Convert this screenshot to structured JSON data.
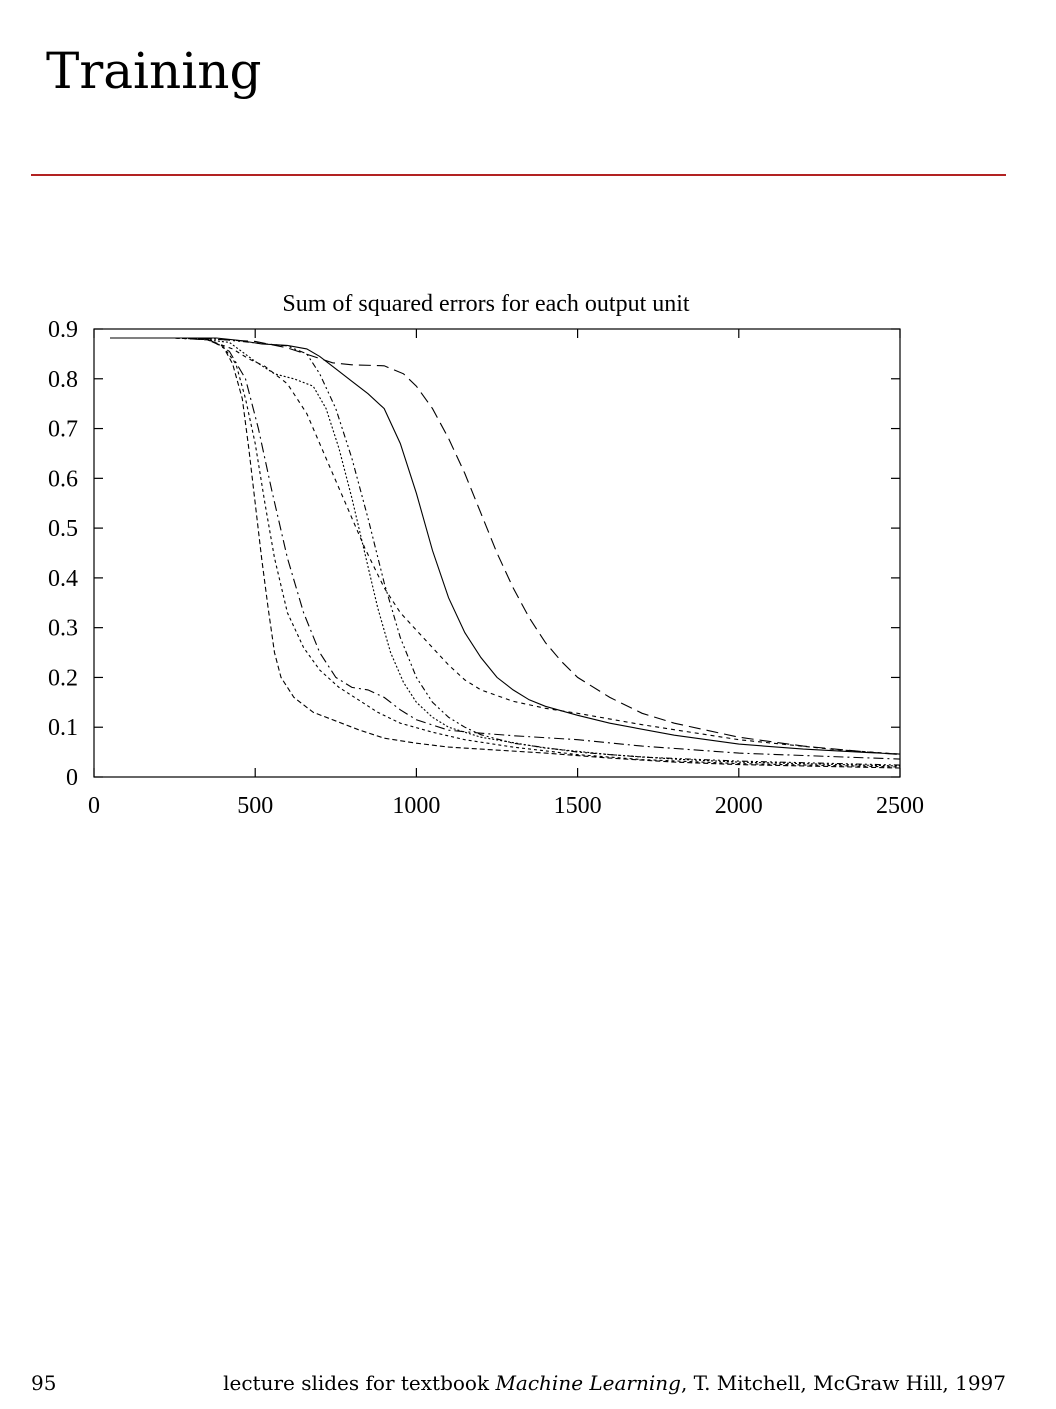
{
  "slide": {
    "title": "Training",
    "page_number": "95",
    "credit_prefix": "lecture slides for textbook",
    "credit_book": "Machine Learning",
    "credit_suffix": ", T. Mitchell, McGraw Hill, 1997"
  },
  "colors": {
    "rule": "#b22222",
    "ink": "#000000"
  },
  "chart_data": {
    "type": "line",
    "title": "Sum of squared errors for each output unit",
    "xlabel": "",
    "ylabel": "",
    "xlim": [
      0,
      2500
    ],
    "ylim": [
      0,
      0.9
    ],
    "x_ticks": [
      {
        "value": 0,
        "label": "0"
      },
      {
        "value": 500,
        "label": "500"
      },
      {
        "value": 1000,
        "label": "1000"
      },
      {
        "value": 1500,
        "label": "1500"
      },
      {
        "value": 2000,
        "label": "2000"
      },
      {
        "value": 2500,
        "label": "2500"
      }
    ],
    "y_ticks": [
      {
        "value": 0,
        "label": "0"
      },
      {
        "value": 0.1,
        "label": "0.1"
      },
      {
        "value": 0.2,
        "label": "0.2"
      },
      {
        "value": 0.3,
        "label": "0.3"
      },
      {
        "value": 0.4,
        "label": "0.4"
      },
      {
        "value": 0.5,
        "label": "0.5"
      },
      {
        "value": 0.6,
        "label": "0.6"
      },
      {
        "value": 0.7,
        "label": "0.7"
      },
      {
        "value": 0.8,
        "label": "0.8"
      },
      {
        "value": 0.9,
        "label": "0.9"
      }
    ],
    "grid": false,
    "legend": "none",
    "series": [
      {
        "dash": "none",
        "points": [
          [
            50,
            0.882
          ],
          [
            200,
            0.882
          ],
          [
            380,
            0.882
          ],
          [
            450,
            0.877
          ],
          [
            520,
            0.87
          ],
          [
            600,
            0.867
          ],
          [
            660,
            0.86
          ],
          [
            700,
            0.845
          ],
          [
            750,
            0.82
          ],
          [
            800,
            0.795
          ],
          [
            850,
            0.77
          ],
          [
            900,
            0.74
          ],
          [
            950,
            0.67
          ],
          [
            1000,
            0.57
          ],
          [
            1050,
            0.455
          ],
          [
            1100,
            0.36
          ],
          [
            1150,
            0.29
          ],
          [
            1200,
            0.24
          ],
          [
            1250,
            0.2
          ],
          [
            1300,
            0.175
          ],
          [
            1350,
            0.155
          ],
          [
            1400,
            0.142
          ],
          [
            1500,
            0.124
          ],
          [
            1600,
            0.108
          ],
          [
            1800,
            0.084
          ],
          [
            2000,
            0.066
          ],
          [
            2200,
            0.056
          ],
          [
            2400,
            0.049
          ],
          [
            2500,
            0.046
          ]
        ]
      },
      {
        "dash": "12,6",
        "points": [
          [
            50,
            0.882
          ],
          [
            300,
            0.882
          ],
          [
            500,
            0.875
          ],
          [
            600,
            0.862
          ],
          [
            680,
            0.845
          ],
          [
            740,
            0.832
          ],
          [
            800,
            0.828
          ],
          [
            900,
            0.826
          ],
          [
            960,
            0.81
          ],
          [
            1000,
            0.785
          ],
          [
            1050,
            0.74
          ],
          [
            1100,
            0.68
          ],
          [
            1150,
            0.61
          ],
          [
            1200,
            0.53
          ],
          [
            1250,
            0.45
          ],
          [
            1300,
            0.38
          ],
          [
            1350,
            0.32
          ],
          [
            1400,
            0.27
          ],
          [
            1450,
            0.232
          ],
          [
            1500,
            0.2
          ],
          [
            1600,
            0.16
          ],
          [
            1700,
            0.128
          ],
          [
            1800,
            0.108
          ],
          [
            2000,
            0.08
          ],
          [
            2200,
            0.062
          ],
          [
            2400,
            0.05
          ],
          [
            2500,
            0.045
          ]
        ]
      },
      {
        "dash": "5,3",
        "points": [
          [
            50,
            0.882
          ],
          [
            250,
            0.882
          ],
          [
            350,
            0.879
          ],
          [
            400,
            0.865
          ],
          [
            430,
            0.83
          ],
          [
            460,
            0.76
          ],
          [
            480,
            0.66
          ],
          [
            500,
            0.55
          ],
          [
            520,
            0.44
          ],
          [
            540,
            0.34
          ],
          [
            560,
            0.25
          ],
          [
            580,
            0.2
          ],
          [
            620,
            0.16
          ],
          [
            680,
            0.13
          ],
          [
            760,
            0.11
          ],
          [
            820,
            0.095
          ],
          [
            900,
            0.078
          ],
          [
            1000,
            0.068
          ],
          [
            1100,
            0.06
          ],
          [
            1200,
            0.056
          ],
          [
            1400,
            0.048
          ],
          [
            1600,
            0.038
          ],
          [
            1800,
            0.03
          ],
          [
            2000,
            0.025
          ],
          [
            2500,
            0.018
          ]
        ]
      },
      {
        "dash": "3,3",
        "points": [
          [
            50,
            0.882
          ],
          [
            250,
            0.882
          ],
          [
            350,
            0.879
          ],
          [
            400,
            0.865
          ],
          [
            440,
            0.83
          ],
          [
            470,
            0.76
          ],
          [
            500,
            0.67
          ],
          [
            530,
            0.55
          ],
          [
            560,
            0.44
          ],
          [
            600,
            0.33
          ],
          [
            650,
            0.26
          ],
          [
            700,
            0.215
          ],
          [
            760,
            0.18
          ],
          [
            820,
            0.155
          ],
          [
            880,
            0.13
          ],
          [
            950,
            0.108
          ],
          [
            1050,
            0.09
          ],
          [
            1150,
            0.075
          ],
          [
            1300,
            0.06
          ],
          [
            1500,
            0.045
          ],
          [
            1700,
            0.035
          ],
          [
            2000,
            0.027
          ],
          [
            2500,
            0.02
          ]
        ]
      },
      {
        "dash": "10,4,2,4",
        "points": [
          [
            50,
            0.882
          ],
          [
            250,
            0.882
          ],
          [
            360,
            0.878
          ],
          [
            420,
            0.855
          ],
          [
            470,
            0.8
          ],
          [
            510,
            0.7
          ],
          [
            550,
            0.58
          ],
          [
            600,
            0.44
          ],
          [
            650,
            0.33
          ],
          [
            700,
            0.25
          ],
          [
            750,
            0.2
          ],
          [
            800,
            0.18
          ],
          [
            850,
            0.175
          ],
          [
            900,
            0.16
          ],
          [
            950,
            0.135
          ],
          [
            1000,
            0.115
          ],
          [
            1100,
            0.094
          ],
          [
            1200,
            0.088
          ],
          [
            1300,
            0.083
          ],
          [
            1500,
            0.075
          ],
          [
            1700,
            0.062
          ],
          [
            2000,
            0.048
          ],
          [
            2500,
            0.036
          ]
        ]
      },
      {
        "dash": "2,2",
        "points": [
          [
            50,
            0.882
          ],
          [
            300,
            0.882
          ],
          [
            420,
            0.873
          ],
          [
            500,
            0.835
          ],
          [
            560,
            0.81
          ],
          [
            620,
            0.8
          ],
          [
            680,
            0.785
          ],
          [
            720,
            0.74
          ],
          [
            760,
            0.66
          ],
          [
            800,
            0.56
          ],
          [
            840,
            0.45
          ],
          [
            880,
            0.34
          ],
          [
            920,
            0.25
          ],
          [
            960,
            0.19
          ],
          [
            1000,
            0.15
          ],
          [
            1050,
            0.12
          ],
          [
            1100,
            0.1
          ],
          [
            1200,
            0.08
          ],
          [
            1400,
            0.058
          ],
          [
            1600,
            0.045
          ],
          [
            1800,
            0.036
          ],
          [
            2000,
            0.03
          ],
          [
            2500,
            0.022
          ]
        ]
      },
      {
        "dash": "6,3,2,3,2,3",
        "points": [
          [
            50,
            0.882
          ],
          [
            300,
            0.882
          ],
          [
            400,
            0.879
          ],
          [
            500,
            0.872
          ],
          [
            600,
            0.866
          ],
          [
            660,
            0.85
          ],
          [
            700,
            0.81
          ],
          [
            750,
            0.74
          ],
          [
            800,
            0.64
          ],
          [
            850,
            0.52
          ],
          [
            900,
            0.39
          ],
          [
            950,
            0.28
          ],
          [
            1000,
            0.2
          ],
          [
            1050,
            0.15
          ],
          [
            1100,
            0.12
          ],
          [
            1150,
            0.1
          ],
          [
            1200,
            0.085
          ],
          [
            1300,
            0.068
          ],
          [
            1500,
            0.05
          ],
          [
            1700,
            0.04
          ],
          [
            2000,
            0.032
          ],
          [
            2500,
            0.024
          ]
        ]
      },
      {
        "dash": "4,4",
        "points": [
          [
            50,
            0.882
          ],
          [
            250,
            0.882
          ],
          [
            350,
            0.879
          ],
          [
            430,
            0.86
          ],
          [
            480,
            0.84
          ],
          [
            530,
            0.825
          ],
          [
            600,
            0.79
          ],
          [
            660,
            0.73
          ],
          [
            720,
            0.64
          ],
          [
            780,
            0.55
          ],
          [
            840,
            0.46
          ],
          [
            900,
            0.38
          ],
          [
            950,
            0.33
          ],
          [
            1000,
            0.295
          ],
          [
            1050,
            0.26
          ],
          [
            1100,
            0.225
          ],
          [
            1150,
            0.195
          ],
          [
            1200,
            0.175
          ],
          [
            1300,
            0.152
          ],
          [
            1400,
            0.138
          ],
          [
            1500,
            0.128
          ],
          [
            1700,
            0.105
          ],
          [
            2000,
            0.075
          ],
          [
            2300,
            0.055
          ],
          [
            2500,
            0.046
          ]
        ]
      }
    ]
  }
}
